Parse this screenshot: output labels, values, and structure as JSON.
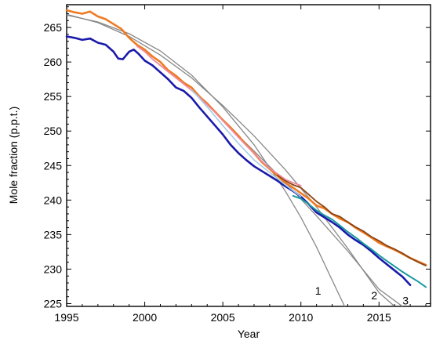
{
  "chart_data": {
    "type": "line",
    "xlabel": "Year",
    "ylabel": "Mole fraction (p.p.t.)",
    "xlim": [
      1995,
      2018.3
    ],
    "ylim": [
      224.6,
      268.3
    ],
    "xticks": [
      1995,
      2000,
      2005,
      2010,
      2015
    ],
    "yticks": [
      225,
      230,
      235,
      240,
      245,
      250,
      255,
      260,
      265
    ],
    "grid": false,
    "legend": "none",
    "series": [
      {
        "color": "#ee7a22",
        "width": 2.6,
        "x": [
          1995.0,
          1995.5,
          1996.0,
          1996.5,
          1997.0,
          1997.5,
          1998.0,
          1998.5,
          1999.0,
          1999.5,
          2000.0,
          2000.5,
          2001.0,
          2001.5,
          2002.0,
          2002.5,
          2003.0,
          2003.5,
          2004.0,
          2004.5,
          2005.0,
          2005.5,
          2006.0,
          2006.5,
          2007.0,
          2007.5,
          2008.0,
          2008.5,
          2009.0,
          2009.5,
          2010.0,
          2010.5,
          2011.0,
          2011.5,
          2012.0,
          2012.5,
          2013.0,
          2013.5,
          2014.0,
          2014.5,
          2015.0,
          2015.5,
          2016.0,
          2016.5,
          2017.0,
          2017.5,
          2018.0
        ],
        "values": [
          267.5,
          267.2,
          267.0,
          267.3,
          266.6,
          266.2,
          265.5,
          264.8,
          263.5,
          262.5,
          261.8,
          260.8,
          260.0,
          258.8,
          258.0,
          257.0,
          256.3,
          255.0,
          254.0,
          252.8,
          251.6,
          250.5,
          249.3,
          248.0,
          246.8,
          245.5,
          244.5,
          243.5,
          242.5,
          241.8,
          241.0,
          240.2,
          239.2,
          238.8,
          238.0,
          237.3,
          236.8,
          236.0,
          235.3,
          234.6,
          233.8,
          233.3,
          232.8,
          232.2,
          231.6,
          231.1,
          230.6
        ]
      },
      {
        "color": "#8b4513",
        "width": 1.8,
        "x": [
          2008.5,
          2009.0,
          2009.5,
          2010.0,
          2010.5,
          2011.0,
          2011.5,
          2012.0,
          2012.5,
          2013.0,
          2013.5,
          2014.0,
          2014.5,
          2015.0,
          2015.5,
          2016.0,
          2016.5,
          2017.0,
          2017.5,
          2018.0
        ],
        "values": [
          243.6,
          242.8,
          242.2,
          241.8,
          240.8,
          239.8,
          239.0,
          238.0,
          237.6,
          236.8,
          236.1,
          235.5,
          234.7,
          234.1,
          233.4,
          232.9,
          232.3,
          231.6,
          231.0,
          230.5
        ]
      },
      {
        "color": "#f08a9a",
        "width": 1.8,
        "x": [
          1999.5,
          2000.0,
          2000.5,
          2001.0,
          2001.5,
          2002.0,
          2002.5,
          2003.0,
          2003.5,
          2004.0,
          2004.5,
          2005.0,
          2005.5,
          2006.0,
          2006.5,
          2007.0,
          2007.5,
          2008.0,
          2008.5,
          2009.0,
          2009.5,
          2010.0
        ],
        "values": [
          262.3,
          261.5,
          260.4,
          259.5,
          258.6,
          257.7,
          256.8,
          255.9,
          254.9,
          253.8,
          252.7,
          251.5,
          250.3,
          249.1,
          247.9,
          246.8,
          245.6,
          244.6,
          243.8,
          243.0,
          242.5,
          242.1
        ]
      },
      {
        "color": "#1a1aaa",
        "width": 2.6,
        "x": [
          1995.0,
          1995.5,
          1996.0,
          1996.5,
          1997.0,
          1997.5,
          1998.0,
          1998.3,
          1998.6,
          1999.0,
          1999.3,
          1999.6,
          2000.0,
          2000.5,
          2001.0,
          2001.5,
          2002.0,
          2002.5,
          2003.0,
          2003.5,
          2004.0,
          2004.5,
          2005.0,
          2005.5,
          2006.0,
          2006.5,
          2007.0,
          2007.5,
          2008.0,
          2008.5,
          2009.0,
          2009.5,
          2010.0,
          2010.5,
          2011.0,
          2011.5,
          2012.0,
          2012.5,
          2013.0,
          2013.5,
          2014.0,
          2014.5,
          2015.0,
          2015.5,
          2016.0,
          2016.5,
          2017.0
        ],
        "values": [
          263.7,
          263.5,
          263.2,
          263.4,
          262.8,
          262.5,
          261.5,
          260.5,
          260.4,
          261.5,
          261.8,
          261.2,
          260.2,
          259.5,
          258.5,
          257.5,
          256.3,
          255.8,
          254.8,
          253.4,
          252.1,
          250.8,
          249.5,
          248.0,
          246.8,
          245.8,
          244.9,
          244.2,
          243.5,
          242.8,
          242.0,
          241.3,
          240.5,
          239.4,
          238.2,
          237.5,
          236.8,
          236.0,
          235.0,
          234.2,
          233.5,
          232.6,
          231.6,
          230.7,
          229.8,
          228.9,
          227.7
        ]
      },
      {
        "color": "#1a9aa0",
        "width": 2.0,
        "x": [
          2009.5,
          2010.0,
          2010.5,
          2011.0,
          2011.5,
          2012.0,
          2012.5,
          2013.0,
          2013.5,
          2014.0,
          2014.5,
          2015.0,
          2015.5,
          2016.0,
          2016.5,
          2017.0,
          2017.5,
          2018.0
        ],
        "values": [
          240.6,
          240.2,
          239.4,
          238.5,
          237.8,
          237.2,
          236.3,
          235.4,
          234.6,
          233.7,
          232.9,
          232.0,
          231.2,
          230.4,
          229.6,
          228.9,
          228.2,
          227.4
        ]
      },
      {
        "color": "#a6cce6",
        "width": 1.6,
        "x": [
          2003.0,
          2004.0,
          2005.0,
          2006.0,
          2007.0,
          2008.0,
          2009.0,
          2010.0
        ],
        "values": [
          256.0,
          253.5,
          250.8,
          248.2,
          245.8,
          244.0,
          242.2,
          240.5
        ]
      }
    ],
    "fits": [
      {
        "label": "1",
        "color": "#888888",
        "x": [
          1995.0,
          1997.0,
          1999.0,
          2001.0,
          2003.0,
          2005.0,
          2007.0,
          2009.0,
          2010.0,
          2011.0,
          2012.0,
          2012.8
        ],
        "values": [
          266.8,
          265.8,
          264.1,
          261.6,
          258.1,
          253.5,
          248.0,
          241.3,
          237.5,
          233.2,
          228.4,
          224.6
        ]
      },
      {
        "label": "2",
        "color": "#888888",
        "x": [
          1995.0,
          1997.0,
          1999.0,
          2001.0,
          2003.0,
          2005.0,
          2007.0,
          2009.0,
          2011.0,
          2013.0,
          2015.0,
          2016.0
        ],
        "values": [
          266.9,
          265.7,
          263.7,
          261.0,
          257.7,
          253.7,
          249.3,
          244.4,
          239.0,
          233.0,
          226.6,
          224.6
        ]
      },
      {
        "label": "3",
        "color": "#888888",
        "x": [
          2005.0,
          2007.0,
          2009.0,
          2011.0,
          2013.0,
          2015.0,
          2016.5
        ],
        "values": [
          251.5,
          247.1,
          242.6,
          237.7,
          232.6,
          227.1,
          224.6
        ]
      }
    ],
    "fit_label_positions": [
      {
        "label": "1",
        "x": 2011.1,
        "y": 226.3
      },
      {
        "label": "2",
        "x": 2014.7,
        "y": 225.6
      },
      {
        "label": "3",
        "x": 2016.7,
        "y": 224.9
      }
    ]
  }
}
